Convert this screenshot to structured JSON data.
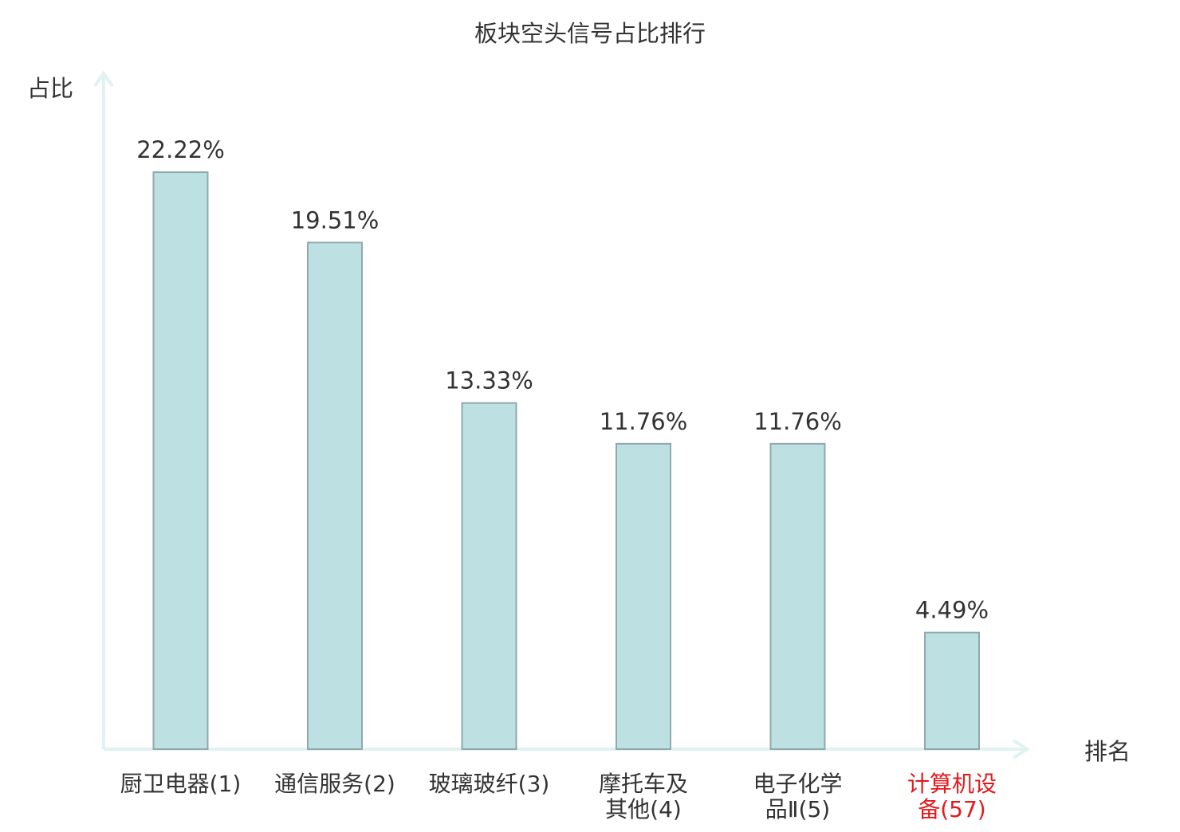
{
  "chart_data": {
    "type": "bar",
    "title": "板块空头信号占比排行",
    "ylabel": "占比",
    "xlabel": "排名",
    "categories": [
      [
        "厨卫电器(1)"
      ],
      [
        "通信服务(2)"
      ],
      [
        "玻璃玻纤(3)"
      ],
      [
        "摩托车及",
        "其他(4)"
      ],
      [
        "电子化学",
        "品Ⅱ(5)"
      ],
      [
        "计算机设",
        "备(57)"
      ]
    ],
    "values": [
      22.22,
      19.51,
      13.33,
      11.76,
      11.76,
      4.49
    ],
    "value_labels": [
      "22.22%",
      "19.51%",
      "13.33%",
      "11.76%",
      "11.76%",
      "4.49%"
    ],
    "highlight_index": 5,
    "ylim": [
      0,
      25
    ],
    "grid": false,
    "colors": {
      "bar_fill": "#bde0e3",
      "bar_stroke": "#8fa9ad",
      "axis": "#e0f2f1",
      "text": "#333333",
      "highlight_text": "#e31a1c"
    }
  }
}
